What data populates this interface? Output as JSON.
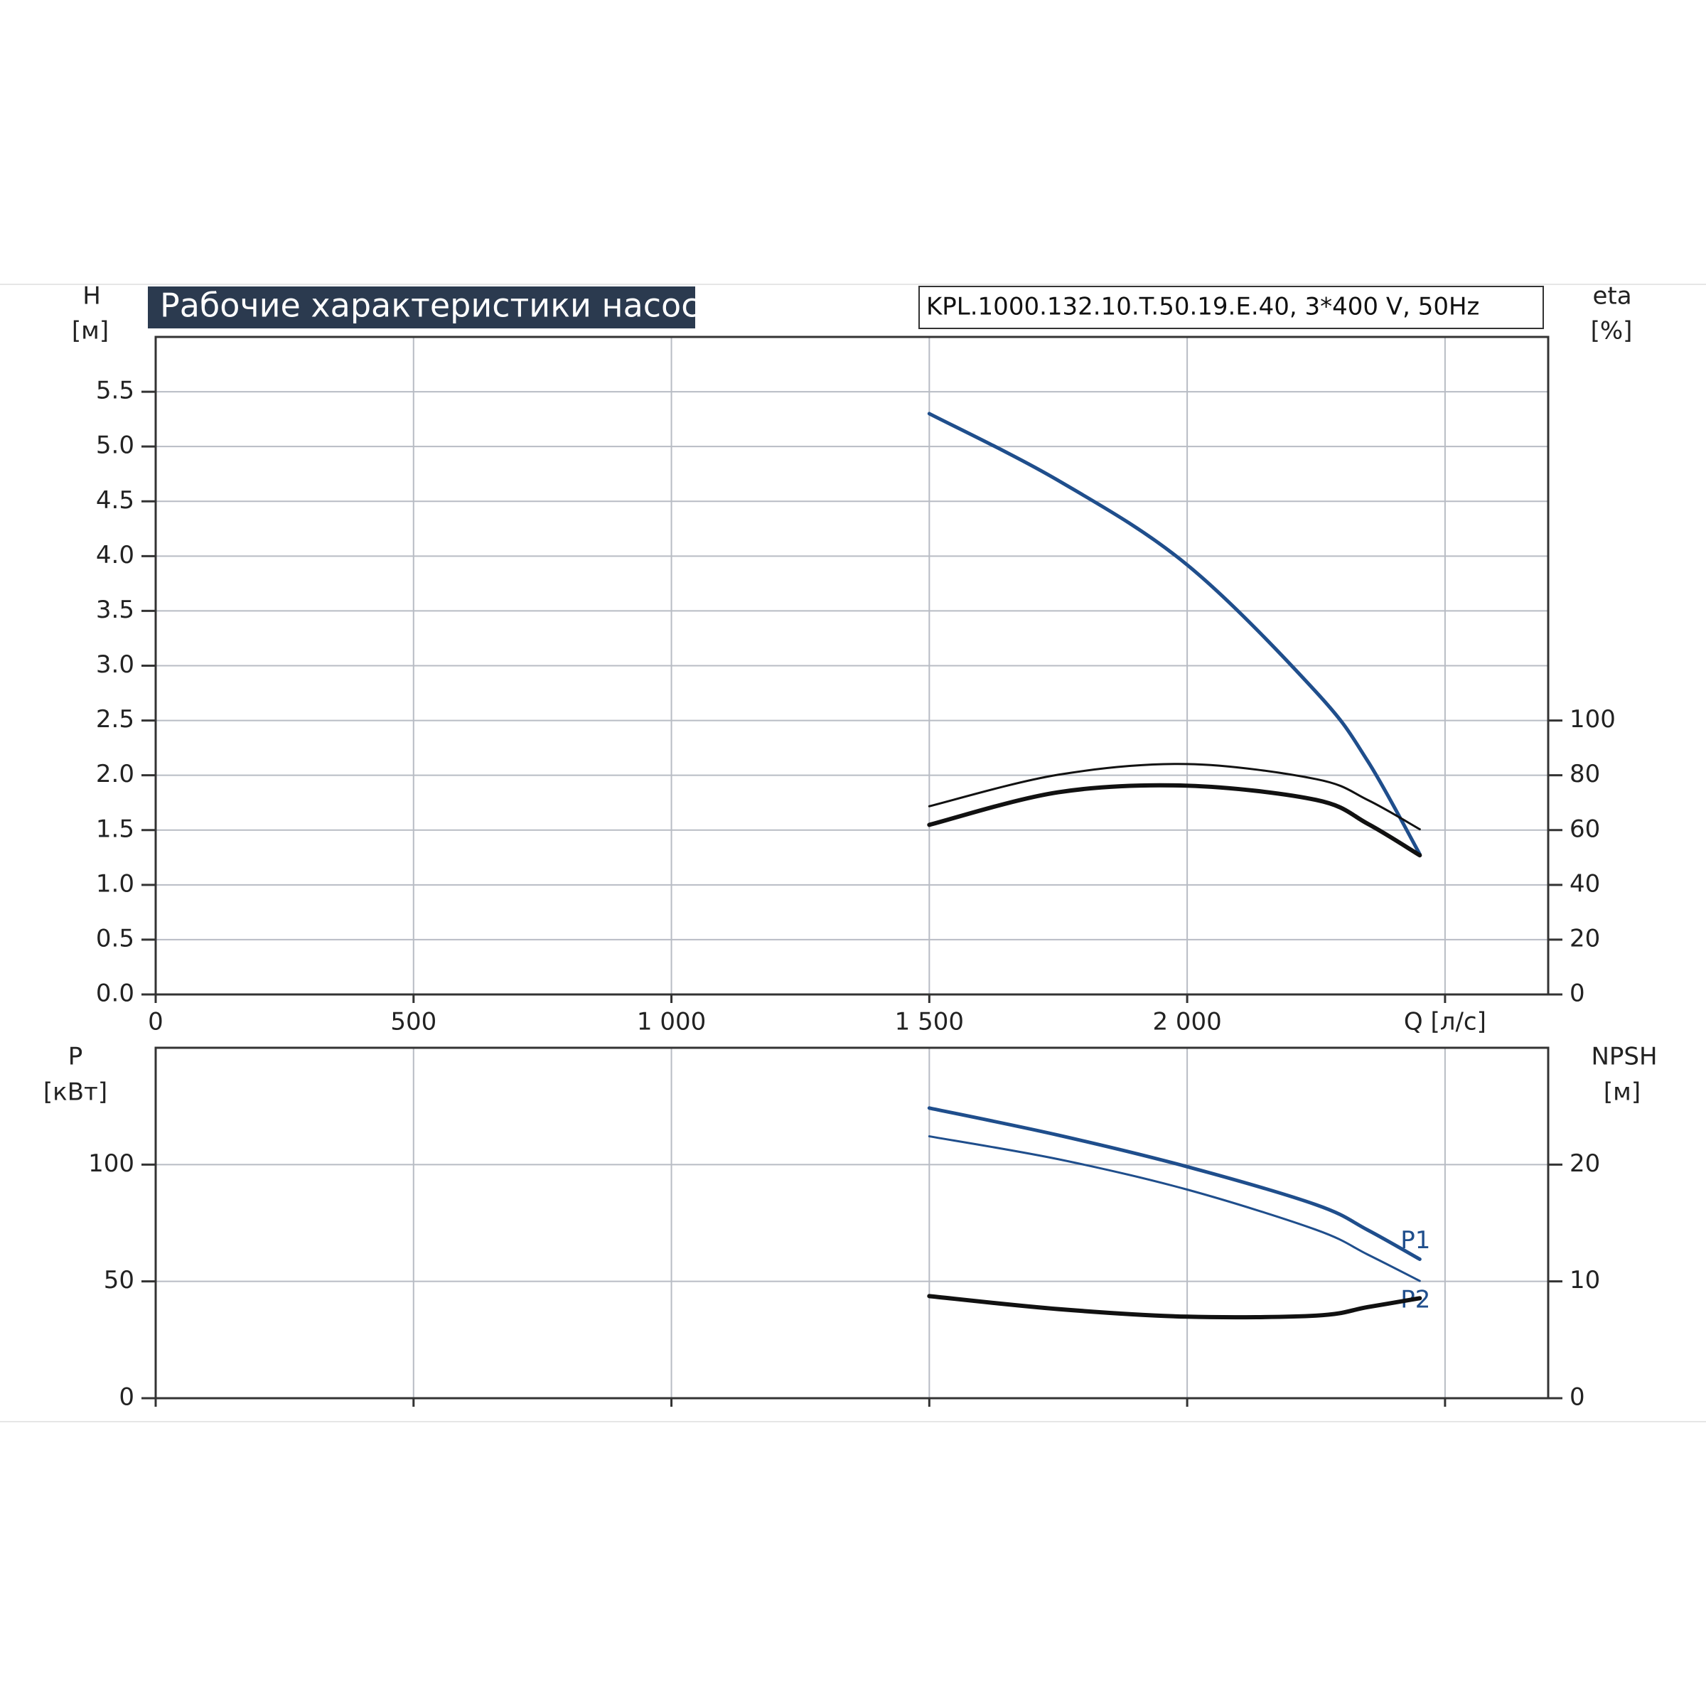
{
  "chart_data": [
    {
      "type": "line",
      "title": "Рабочие характеристики насоса",
      "subtitle": "KPL.1000.132.10.T.50.19.E.40, 3*400 V, 50Hz",
      "ylabel": "H",
      "yunit": "[м]",
      "y2label": "eta",
      "y2unit": "[%]",
      "x": [
        1500,
        1750,
        2000,
        2250,
        2350,
        2451
      ],
      "xlim": [
        0,
        2700
      ],
      "xticks": [
        0,
        500,
        {
          "value": 1000,
          "label": "1 000"
        },
        {
          "value": 1500,
          "label": "1 500"
        },
        {
          "value": 2000,
          "label": "2 000"
        },
        {
          "value": 2500,
          "label": "Q [л/с]"
        }
      ],
      "ylim": [
        0,
        6.0
      ],
      "yticks": [
        {
          "value": 0,
          "label": "0.0"
        },
        0.5,
        {
          "value": 1,
          "label": "1.0"
        },
        1.5,
        {
          "value": 2,
          "label": "2.0"
        },
        2.5,
        {
          "value": 3,
          "label": "3.0"
        },
        3.5,
        {
          "value": 4,
          "label": "4.0"
        },
        4.5,
        {
          "value": 5,
          "label": "5.0"
        },
        5.5
      ],
      "y2lim": [
        0,
        240
      ],
      "y2ticks": [
        0,
        20,
        40,
        60,
        80,
        100
      ],
      "grid": true,
      "series": [
        {
          "color": "#1f4e8c",
          "width": 5,
          "values": [
            5.3,
            4.69,
            3.92,
            2.76,
            2.13,
            1.28
          ]
        },
        {
          "color": "#111111",
          "width": 3,
          "axis": "y2",
          "values": [
            68.7,
            80.2,
            84.1,
            78.6,
            71,
            60.3
          ]
        },
        {
          "color": "#111111",
          "width": 6,
          "axis": "y2",
          "values": [
            61.9,
            73.8,
            76.2,
            71,
            62.3,
            50.8
          ]
        }
      ]
    },
    {
      "type": "line",
      "ylabel": "P",
      "yunit": "[кВт]",
      "y2label": "NPSH",
      "y2unit": "[м]",
      "x": [
        1500,
        1750,
        2000,
        2250,
        2350,
        2451
      ],
      "xlim": [
        0,
        2700
      ],
      "ylim": [
        0,
        150
      ],
      "yticks": [
        0,
        50,
        100
      ],
      "y2lim": [
        0,
        30
      ],
      "y2ticks": [
        0,
        10,
        20
      ],
      "grid": true,
      "series": [
        {
          "name": "P1",
          "color": "#1f4e8c",
          "width": 5,
          "values": [
            124.2,
            112.6,
            99.1,
            82.8,
            72,
            59.5
          ]
        },
        {
          "name": "P2",
          "color": "#1f4e8c",
          "width": 3,
          "values": [
            112.1,
            102.3,
            89.3,
            72.1,
            61.5,
            50.2
          ]
        },
        {
          "color": "#111111",
          "width": 6,
          "axis": "y2",
          "values": [
            8.74,
            7.63,
            6.98,
            7.07,
            7.8,
            8.56
          ]
        }
      ]
    }
  ]
}
